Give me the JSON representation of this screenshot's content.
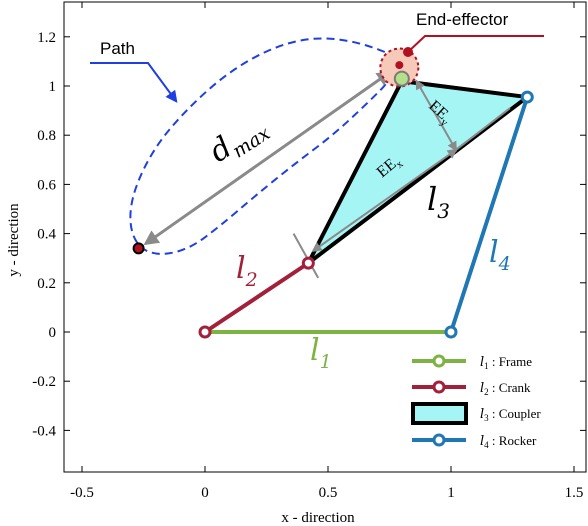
{
  "axes": {
    "xlabel": "x - direction",
    "ylabel": "y - direction",
    "xlim": [
      -0.6,
      1.55
    ],
    "ylim": [
      -0.57,
      1.33
    ],
    "xticks": [
      "-0.5",
      "0",
      "0.5",
      "1",
      "1.5"
    ],
    "xtick_values": [
      -0.5,
      0,
      0.5,
      1,
      1.5
    ],
    "yticks": [
      "-0.4",
      "-0.2",
      "0",
      "0.2",
      "0.4",
      "0.6",
      "0.8",
      "1",
      "1.2"
    ],
    "ytick_values": [
      -0.4,
      -0.2,
      0,
      0.2,
      0.4,
      0.6,
      0.8,
      1,
      1.2
    ]
  },
  "mechanism": {
    "frame_from": [
      0,
      0
    ],
    "frame_to": [
      1,
      0
    ],
    "crank_to": [
      0.42,
      0.28
    ],
    "coupler_apex": [
      0.8,
      1.02
    ],
    "rocker_top": [
      1.31,
      0.955
    ],
    "end_effector": [
      0.79,
      1.085
    ],
    "path_start": [
      -0.27,
      0.34
    ]
  },
  "labels": {
    "path": "Path",
    "end_effector": "End-effector",
    "d_max_main": "d",
    "d_max_sub": "max",
    "ee_x_main": "EE",
    "ee_x_sub": "x",
    "ee_y_main": "EE",
    "ee_y_sub": "y",
    "l1_main": "l",
    "l1_sub": "1",
    "l2_main": "l",
    "l2_sub": "2",
    "l3_main": "l",
    "l3_sub": "3",
    "l4_main": "l",
    "l4_sub": "4"
  },
  "legend": [
    {
      "sym": "l",
      "sub": "1",
      "text": " : Frame",
      "kind": "line",
      "color": "#7cb342"
    },
    {
      "sym": "l",
      "sub": "2",
      "text": " : Crank",
      "kind": "line",
      "color": "#a3203a"
    },
    {
      "sym": "l",
      "sub": "3",
      "text": " : Coupler",
      "kind": "patch",
      "color": "#a6f5f5"
    },
    {
      "sym": "l",
      "sub": "4",
      "text": " : Rocker",
      "kind": "line",
      "color": "#1f77b4"
    }
  ],
  "colors": {
    "frame": "#7cb342",
    "crank": "#a3203a",
    "rocker": "#1f77b4",
    "coupler_fill": "#a6f5f5",
    "path": "#1f3fe0",
    "callout_red": "#b01020",
    "dimension_gray": "#8a8a8a"
  }
}
